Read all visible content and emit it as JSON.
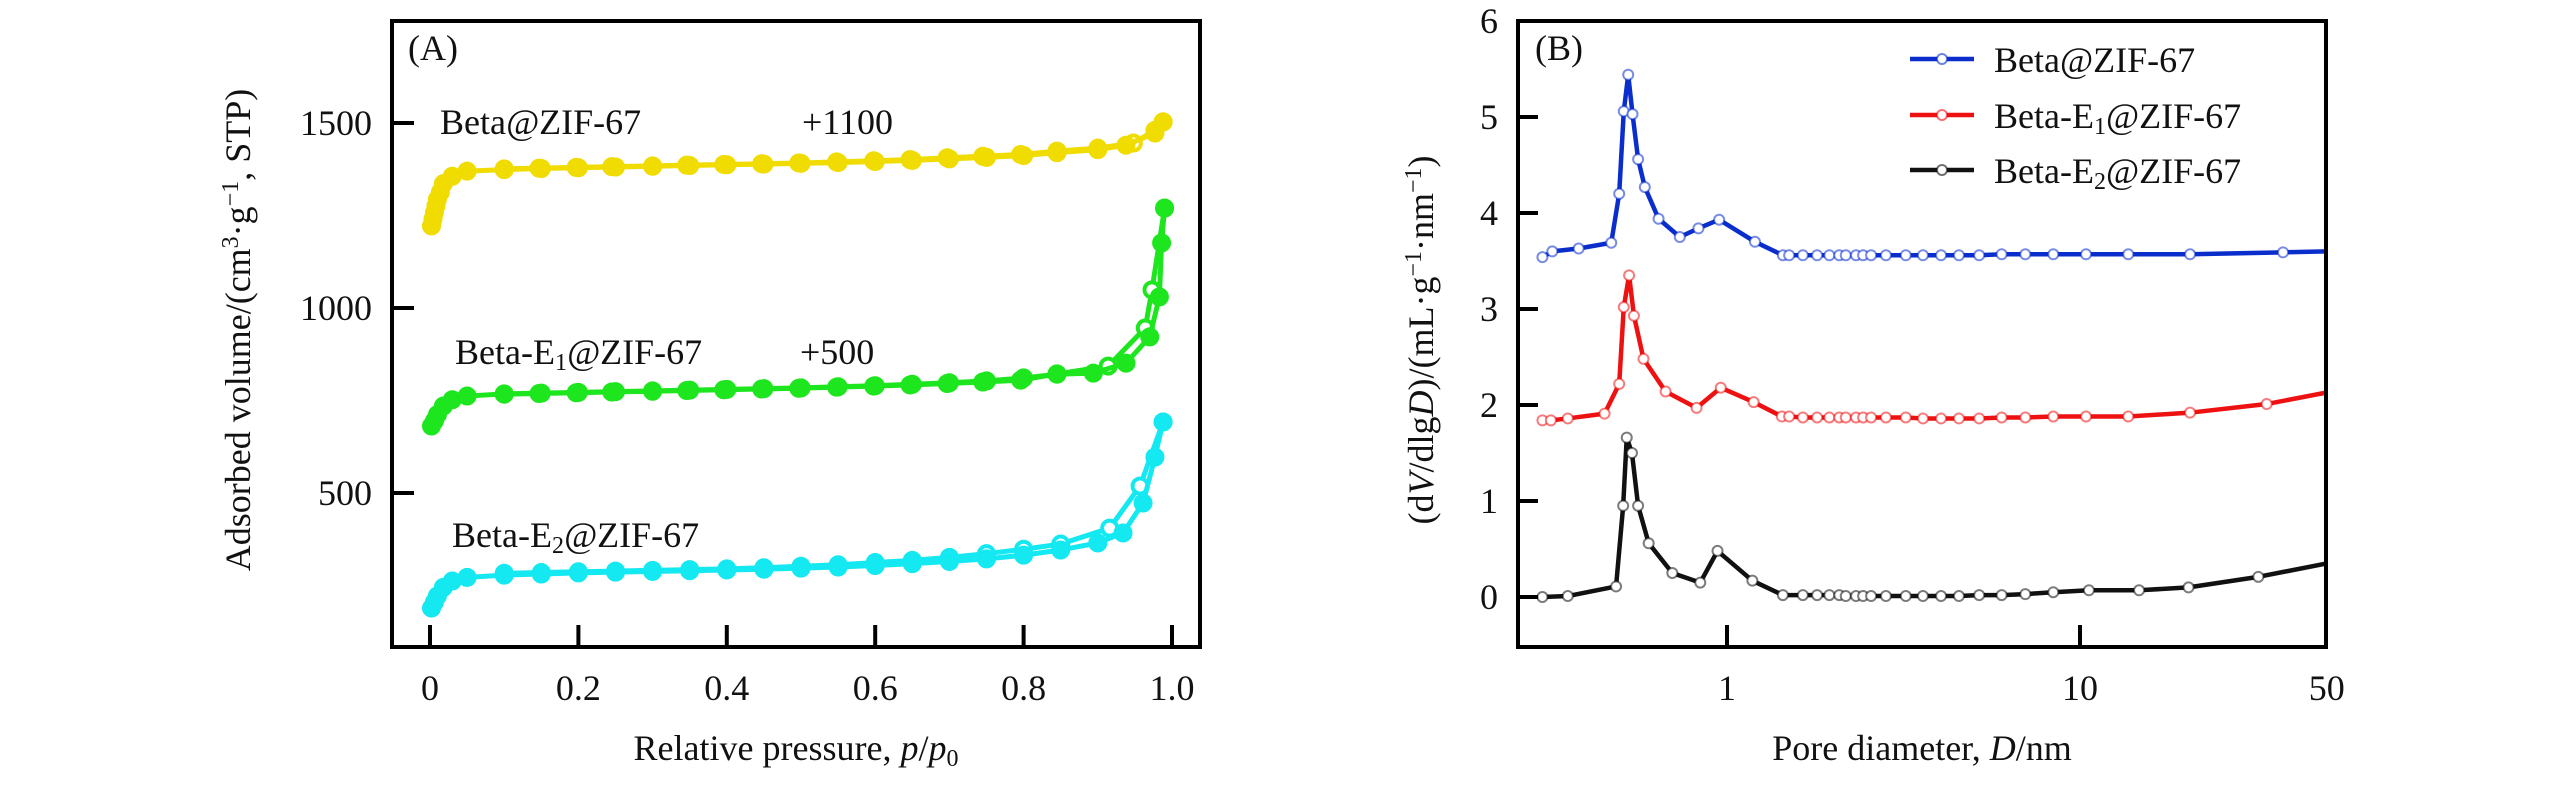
{
  "chart_data": [
    {
      "panel": "A",
      "type": "line",
      "panel_label": "(A)",
      "xlabel": "Relative pressure, p/p0",
      "ylabel": "Adsorbed volume/(cm3·g−1, STP)",
      "xlim": [
        -0.05,
        1.04
      ],
      "ylim": [
        90,
        1780
      ],
      "xticks": [
        0,
        0.2,
        0.4,
        0.6,
        0.8,
        1.0
      ],
      "xtick_labels": [
        "0",
        "0.2",
        "0.4",
        "0.6",
        "0.8",
        "1.0"
      ],
      "yticks": [
        500,
        1000,
        1500
      ],
      "ytick_labels": [
        "500",
        "1000",
        "1500"
      ],
      "grid": false,
      "annotations": [
        {
          "text": "Beta@ZIF-67",
          "near_series": "Beta@ZIF-67"
        },
        {
          "text": "+1100",
          "near_series": "Beta@ZIF-67"
        },
        {
          "text": "Beta-E1@ZIF-67",
          "near_series": "Beta-E1@ZIF-67"
        },
        {
          "text": "+500",
          "near_series": "Beta-E1@ZIF-67"
        },
        {
          "text": "Beta-E2@ZIF-67",
          "near_series": "Beta-E2@ZIF-67"
        }
      ],
      "series": [
        {
          "name": "Beta@ZIF-67",
          "offset": 1100,
          "color": "#f0dc00",
          "adsorption": {
            "x": [
              0.002,
              0.004,
              0.006,
              0.008,
              0.01,
              0.014,
              0.018,
              0.03,
              0.05,
              0.1,
              0.15,
              0.2,
              0.25,
              0.3,
              0.35,
              0.4,
              0.45,
              0.5,
              0.55,
              0.6,
              0.65,
              0.7,
              0.75,
              0.8,
              0.845,
              0.9,
              0.938,
              0.977,
              0.988
            ],
            "y": [
              1222,
              1240,
              1258,
              1276,
              1294,
              1313,
              1336,
              1356,
              1370,
              1374,
              1377,
              1379,
              1381,
              1383,
              1385,
              1387,
              1389,
              1391,
              1393,
              1396,
              1399,
              1403,
              1407,
              1412,
              1420,
              1428,
              1440,
              1473,
              1503
            ]
          },
          "desorption": {
            "x": [
              0.988,
              0.977,
              0.948,
              0.9,
              0.845,
              0.796,
              0.745,
              0.697,
              0.647,
              0.598,
              0.548,
              0.497,
              0.447,
              0.396,
              0.346,
              0.3,
              0.245,
              0.197,
              0.147,
              0.1
            ],
            "y": [
              1503,
              1480,
              1446,
              1432,
              1424,
              1415,
              1410,
              1406,
              1401,
              1398,
              1395,
              1392,
              1390,
              1388,
              1386,
              1384,
              1382,
              1380,
              1378,
              1376
            ]
          }
        },
        {
          "name": "Beta-E1@ZIF-67",
          "offset": 500,
          "color": "#1ee61e",
          "adsorption": {
            "x": [
              0.002,
              0.006,
              0.01,
              0.018,
              0.03,
              0.05,
              0.1,
              0.15,
              0.2,
              0.25,
              0.3,
              0.35,
              0.4,
              0.45,
              0.5,
              0.55,
              0.6,
              0.65,
              0.7,
              0.75,
              0.8,
              0.845,
              0.894,
              0.938,
              0.97,
              0.983,
              0.986,
              0.99
            ],
            "y": [
              681,
              695,
              712,
              735,
              752,
              762,
              768,
              770,
              772,
              774,
              776,
              778,
              780,
              782,
              784,
              787,
              790,
              794,
              798,
              803,
              811,
              821,
              824,
              851,
              922,
              1030,
              1176,
              1270
            ]
          },
          "desorption": {
            "x": [
              0.99,
              0.973,
              0.964,
              0.914,
              0.845,
              0.796,
              0.745,
              0.697,
              0.647,
              0.598,
              0.548,
              0.497,
              0.447,
              0.396,
              0.346,
              0.3,
              0.245,
              0.197,
              0.147,
              0.1
            ],
            "y": [
              1270,
              1049,
              946,
              843,
              822,
              805,
              800,
              796,
              792,
              789,
              786,
              783,
              781,
              779,
              777,
              775,
              773,
              771,
              769,
              767
            ]
          }
        },
        {
          "name": "Beta-E2@ZIF-67",
          "offset": 0,
          "color": "#14e8f0",
          "adsorption": {
            "x": [
              0.002,
              0.006,
              0.01,
              0.018,
              0.03,
              0.05,
              0.1,
              0.15,
              0.2,
              0.25,
              0.3,
              0.35,
              0.4,
              0.45,
              0.5,
              0.55,
              0.6,
              0.65,
              0.7,
              0.75,
              0.8,
              0.85,
              0.9,
              0.934,
              0.961,
              0.977,
              0.988
            ],
            "y": [
              189,
              205,
              222,
              245,
              262,
              272,
              278,
              281,
              284,
              286,
              288,
              290,
              292,
              294,
              297,
              300,
              304,
              309,
              315,
              322,
              332,
              346,
              365,
              392,
              473,
              597,
              692
            ]
          },
          "desorption": {
            "x": [
              0.988,
              0.957,
              0.916,
              0.85,
              0.8,
              0.75,
              0.7,
              0.65,
              0.6,
              0.55,
              0.5,
              0.45,
              0.4,
              0.35,
              0.3,
              0.25,
              0.2,
              0.15,
              0.1
            ],
            "y": [
              692,
              519,
              405,
              362,
              348,
              336,
              326,
              318,
              312,
              306,
              302,
              298,
              295,
              293,
              291,
              289,
              287,
              285,
              283
            ]
          }
        }
      ]
    },
    {
      "panel": "B",
      "type": "line",
      "panel_label": "(B)",
      "xlabel": "Pore diameter, D/nm",
      "ylabel": "(dV/dlgD)/(mL·g−1·nm−1)",
      "xscale": "log",
      "xlim": [
        0.26,
        50
      ],
      "ylim": [
        -0.52,
        6
      ],
      "xticks": [
        1,
        10,
        50
      ],
      "xtick_labels": [
        "1",
        "10",
        "50"
      ],
      "yticks": [
        0,
        1,
        2,
        3,
        4,
        5,
        6
      ],
      "ytick_labels": [
        "0",
        "1",
        "2",
        "3",
        "4",
        "5",
        "6"
      ],
      "grid": false,
      "legend": {
        "position": "top-right",
        "entries": [
          "Beta@ZIF-67",
          "Beta-E1@ZIF-67",
          "Beta-E2@ZIF-67"
        ]
      },
      "series": [
        {
          "name": "Beta@ZIF-67",
          "color": "#0a2ecc",
          "x": [
            0.3,
            0.32,
            0.38,
            0.47,
            0.495,
            0.51,
            0.525,
            0.54,
            0.56,
            0.585,
            0.64,
            0.735,
            0.83,
            0.95,
            1.2,
            1.44,
            1.5,
            1.64,
            1.8,
            1.95,
            2.08,
            2.17,
            2.32,
            2.43,
            2.56,
            2.82,
            3.21,
            3.59,
            4.04,
            4.54,
            5.18,
            6.0,
            7.0,
            8.4,
            10.4,
            13.7,
            20.5,
            37.6,
            50
          ],
          "y": [
            3.54,
            3.6,
            3.63,
            3.69,
            4.2,
            5.06,
            5.44,
            5.03,
            4.56,
            4.27,
            3.94,
            3.75,
            3.84,
            3.93,
            3.7,
            3.56,
            3.56,
            3.56,
            3.56,
            3.56,
            3.56,
            3.56,
            3.56,
            3.56,
            3.56,
            3.56,
            3.56,
            3.56,
            3.56,
            3.56,
            3.56,
            3.57,
            3.57,
            3.57,
            3.57,
            3.57,
            3.57,
            3.59,
            3.6
          ]
        },
        {
          "name": "Beta-E1@ZIF-67",
          "color": "#ee1111",
          "x": [
            0.3,
            0.317,
            0.354,
            0.45,
            0.495,
            0.51,
            0.528,
            0.545,
            0.58,
            0.67,
            0.82,
            0.96,
            1.19,
            1.43,
            1.5,
            1.64,
            1.8,
            1.95,
            2.08,
            2.17,
            2.32,
            2.43,
            2.56,
            2.82,
            3.21,
            3.59,
            4.04,
            4.54,
            5.18,
            6.0,
            7.0,
            8.4,
            10.4,
            13.7,
            20.5,
            33.8,
            50
          ],
          "y": [
            1.84,
            1.84,
            1.86,
            1.91,
            2.22,
            3.02,
            3.35,
            2.93,
            2.48,
            2.14,
            1.97,
            2.18,
            2.03,
            1.88,
            1.88,
            1.87,
            1.87,
            1.87,
            1.87,
            1.87,
            1.87,
            1.87,
            1.87,
            1.87,
            1.87,
            1.86,
            1.86,
            1.86,
            1.86,
            1.87,
            1.87,
            1.88,
            1.88,
            1.88,
            1.92,
            2.01,
            2.13
          ]
        },
        {
          "name": "Beta-E2@ZIF-67",
          "color": "#111111",
          "x": [
            0.3,
            0.354,
            0.485,
            0.508,
            0.52,
            0.538,
            0.56,
            0.6,
            0.7,
            0.84,
            0.94,
            1.18,
            1.44,
            1.64,
            1.8,
            1.95,
            2.08,
            2.17,
            2.32,
            2.43,
            2.56,
            2.82,
            3.21,
            3.59,
            4.04,
            4.54,
            5.18,
            6.0,
            7.0,
            8.4,
            10.6,
            14.7,
            20.3,
            32,
            50
          ],
          "y": [
            0.0,
            0.01,
            0.11,
            0.95,
            1.66,
            1.5,
            0.95,
            0.56,
            0.25,
            0.15,
            0.48,
            0.17,
            0.02,
            0.02,
            0.02,
            0.02,
            0.02,
            0.01,
            0.01,
            0.01,
            0.01,
            0.01,
            0.01,
            0.01,
            0.01,
            0.01,
            0.02,
            0.02,
            0.03,
            0.05,
            0.07,
            0.07,
            0.1,
            0.21,
            0.35
          ]
        }
      ]
    }
  ]
}
